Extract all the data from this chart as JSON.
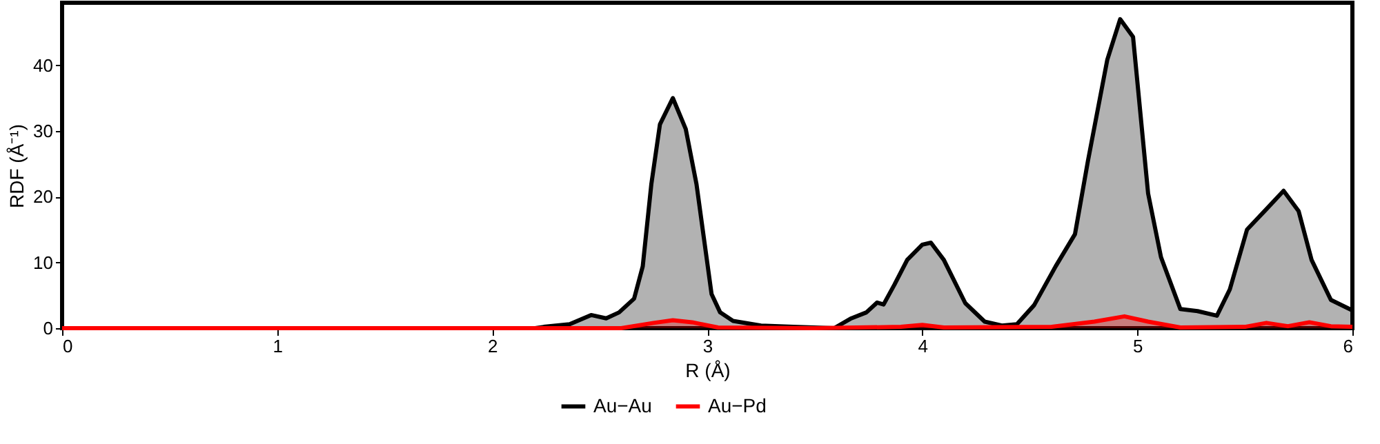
{
  "chart_data": {
    "type": "area",
    "xlabel": "R (Å)",
    "ylabel": "RDF (Å⁻¹)",
    "xlim": [
      0,
      6
    ],
    "xticks": [
      0,
      1,
      2,
      3,
      4,
      5,
      6
    ],
    "ylim": [
      0,
      49.5
    ],
    "yticks": [
      0,
      10,
      20,
      30,
      40
    ],
    "grid": false,
    "legend": "bottom",
    "line_style": "solid",
    "marker": "none",
    "series": [
      {
        "name": "Au−Au",
        "color": "#000000",
        "x": [
          0,
          1,
          2,
          2.2,
          2.24,
          2.36,
          2.46,
          2.53,
          2.59,
          2.66,
          2.7,
          2.74,
          2.78,
          2.84,
          2.9,
          2.95,
          3.02,
          3.06,
          3.12,
          3.25,
          3.4,
          3.59,
          3.67,
          3.74,
          3.79,
          3.82,
          3.87,
          3.93,
          4.0,
          4.04,
          4.1,
          4.2,
          4.29,
          4.37,
          4.44,
          4.52,
          4.62,
          4.71,
          4.77,
          4.86,
          4.92,
          4.98,
          5.05,
          5.11,
          5.2,
          5.28,
          5.37,
          5.43,
          5.51,
          5.6,
          5.68,
          5.75,
          5.81,
          5.9,
          6.0
        ],
        "values": [
          0,
          0,
          0,
          0,
          0.2,
          0.6,
          2.0,
          1.5,
          2.4,
          4.5,
          9.4,
          21.9,
          31,
          35,
          30.3,
          21.9,
          5.2,
          2.4,
          1.1,
          0.4,
          0.2,
          0,
          1.5,
          2.4,
          3.9,
          3.6,
          6.6,
          10.4,
          12.7,
          13.0,
          10.4,
          3.8,
          1.0,
          0.4,
          0.6,
          3.5,
          9.4,
          14.3,
          25.4,
          40.8,
          47.0,
          44.3,
          20.5,
          10.8,
          2.9,
          2.6,
          1.9,
          5.9,
          15.0,
          18.1,
          20.9,
          17.8,
          10.4,
          4.3,
          2.7
        ]
      },
      {
        "name": "Au−Pd",
        "color": "#ff0000",
        "x": [
          0,
          1,
          2,
          2.6,
          2.75,
          2.84,
          2.93,
          3.05,
          3.5,
          3.9,
          4.0,
          4.1,
          4.6,
          4.8,
          4.94,
          5.05,
          5.2,
          5.5,
          5.6,
          5.7,
          5.8,
          5.9,
          6.0
        ],
        "values": [
          0,
          0,
          0,
          0,
          0.8,
          1.2,
          0.9,
          0.1,
          0,
          0.2,
          0.5,
          0.1,
          0.2,
          1.0,
          1.8,
          1.0,
          0.1,
          0.2,
          0.8,
          0.3,
          0.9,
          0.3,
          0.2
        ]
      }
    ]
  }
}
